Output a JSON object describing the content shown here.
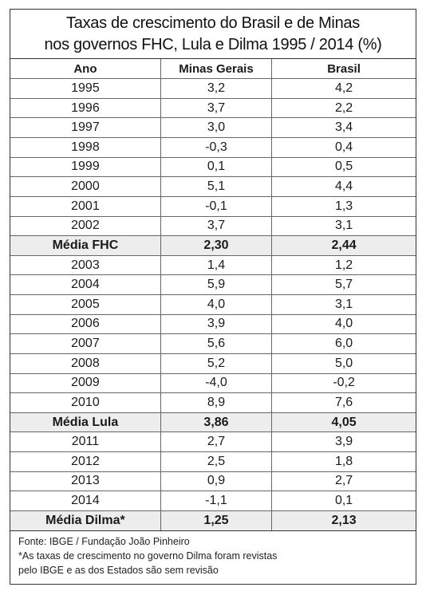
{
  "title": {
    "line1": "Taxas de crescimento do Brasil e de Minas",
    "line2": "nos governos FHC, Lula e Dilma 1995 / 2014 (%)"
  },
  "headers": [
    "Ano",
    "Minas Gerais",
    "Brasil"
  ],
  "rows": [
    {
      "label": "1995",
      "mg": "3,2",
      "br": "4,2",
      "avg": false
    },
    {
      "label": "1996",
      "mg": "3,7",
      "br": "2,2",
      "avg": false
    },
    {
      "label": "1997",
      "mg": "3,0",
      "br": "3,4",
      "avg": false
    },
    {
      "label": "1998",
      "mg": "-0,3",
      "br": "0,4",
      "avg": false
    },
    {
      "label": "1999",
      "mg": "0,1",
      "br": "0,5",
      "avg": false
    },
    {
      "label": "2000",
      "mg": "5,1",
      "br": "4,4",
      "avg": false
    },
    {
      "label": "2001",
      "mg": "-0,1",
      "br": "1,3",
      "avg": false
    },
    {
      "label": "2002",
      "mg": "3,7",
      "br": "3,1",
      "avg": false
    },
    {
      "label": "Média FHC",
      "mg": "2,30",
      "br": "2,44",
      "avg": true
    },
    {
      "label": "2003",
      "mg": "1,4",
      "br": "1,2",
      "avg": false
    },
    {
      "label": "2004",
      "mg": "5,9",
      "br": "5,7",
      "avg": false
    },
    {
      "label": "2005",
      "mg": "4,0",
      "br": "3,1",
      "avg": false
    },
    {
      "label": "2006",
      "mg": "3,9",
      "br": "4,0",
      "avg": false
    },
    {
      "label": "2007",
      "mg": "5,6",
      "br": "6,0",
      "avg": false
    },
    {
      "label": "2008",
      "mg": "5,2",
      "br": "5,0",
      "avg": false
    },
    {
      "label": "2009",
      "mg": "-4,0",
      "br": "-0,2",
      "avg": false
    },
    {
      "label": "2010",
      "mg": "8,9",
      "br": "7,6",
      "avg": false
    },
    {
      "label": "Média Lula",
      "mg": "3,86",
      "br": "4,05",
      "avg": true
    },
    {
      "label": "2011",
      "mg": "2,7",
      "br": "3,9",
      "avg": false
    },
    {
      "label": "2012",
      "mg": "2,5",
      "br": "1,8",
      "avg": false
    },
    {
      "label": "2013",
      "mg": "0,9",
      "br": "2,7",
      "avg": false
    },
    {
      "label": "2014",
      "mg": "-1,1",
      "br": "0,1",
      "avg": false
    },
    {
      "label": "Média Dilma*",
      "mg": "1,25",
      "br": "2,13",
      "avg": true
    }
  ],
  "source": [
    "Fonte: IBGE / Fundação João Pinheiro",
    "*As taxas de crescimento no governo Dilma foram revistas",
    "pelo IBGE e as dos Estados são sem revisão"
  ]
}
